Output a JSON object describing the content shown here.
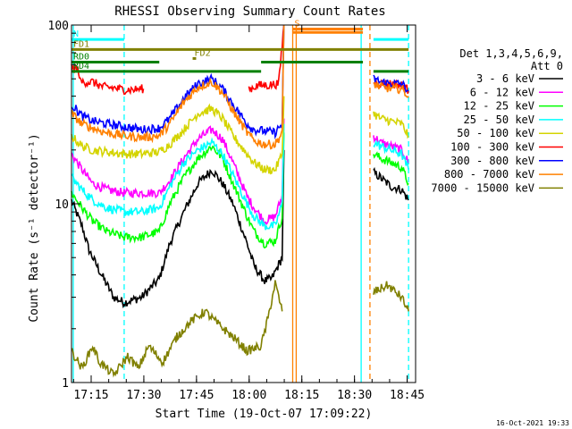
{
  "chart_data": {
    "type": "line",
    "title": "RHESSI Observing Summary Count Rates",
    "xlabel": "Start Time (19-Oct-07 17:09:22)",
    "ylabel": "Count Rate (s⁻¹ detector⁻¹)",
    "yscale": "log",
    "ylim": [
      1,
      100
    ],
    "xlim_minutes": [
      0,
      98
    ],
    "x_ticks": [
      {
        "label": "17:15",
        "min": 5.6
      },
      {
        "label": "17:30",
        "min": 20.6
      },
      {
        "label": "17:45",
        "min": 35.6
      },
      {
        "label": "18:00",
        "min": 50.6
      },
      {
        "label": "18:15",
        "min": 65.6
      },
      {
        "label": "18:30",
        "min": 80.6
      },
      {
        "label": "18:45",
        "min": 95.6
      }
    ],
    "y_ticks": [
      {
        "label": "1",
        "v": 1
      },
      {
        "label": "10",
        "v": 10
      },
      {
        "label": "100",
        "v": 100
      }
    ],
    "footer_date": "16-Oct-2021 19:33",
    "legend": {
      "header_line1": "Det 1,3,4,5,6,9,",
      "header_line2": "Att 0",
      "placement": "right"
    },
    "x_unit": "minutes since start",
    "series": [
      {
        "name": "3 - 6 keV",
        "color": "#000000",
        "x": [
          0,
          3,
          5,
          8,
          12,
          15,
          20,
          25,
          28,
          32,
          36,
          40,
          43,
          46,
          50,
          52,
          55,
          57,
          60,
          60.5,
          86,
          88,
          91,
          94,
          96
        ],
        "y": [
          10.4,
          7.5,
          5.5,
          4.2,
          3,
          2.8,
          3,
          3.8,
          6,
          9,
          13,
          15.5,
          13,
          10,
          6,
          4.5,
          3.7,
          3.8,
          5,
          20,
          15,
          14,
          12.5,
          12,
          10.5
        ]
      },
      {
        "name": "6 - 12 keV",
        "color": "#ff00ff",
        "x": [
          0,
          3,
          6,
          10,
          15,
          20,
          25,
          28,
          32,
          36,
          40,
          43,
          46,
          50,
          52,
          55,
          58,
          60,
          60.5,
          86,
          88,
          91,
          94,
          96
        ],
        "y": [
          19,
          15.5,
          13,
          12,
          11.5,
          11.5,
          11.5,
          13.5,
          18,
          23,
          26,
          23,
          17,
          11,
          9.5,
          8,
          8.5,
          11,
          30,
          24,
          22,
          21,
          20,
          17
        ]
      },
      {
        "name": "12 - 25 keV",
        "color": "#00ff00",
        "x": [
          0,
          3,
          6,
          10,
          15,
          20,
          25,
          28,
          32,
          36,
          40,
          43,
          46,
          50,
          52,
          55,
          58,
          60,
          60.5,
          86,
          88,
          91,
          94,
          96
        ],
        "y": [
          11.5,
          9.5,
          8,
          7,
          6.5,
          6.5,
          7,
          10,
          14,
          18,
          21,
          18,
          13,
          8.5,
          7,
          6,
          6.2,
          8.5,
          25,
          19,
          18,
          17,
          16,
          13
        ]
      },
      {
        "name": "25 - 50 keV",
        "color": "#00ffff",
        "x": [
          0,
          3,
          6,
          10,
          15,
          20,
          25,
          28,
          32,
          36,
          40,
          43,
          46,
          50,
          52,
          55,
          58,
          60,
          60.5,
          86,
          88,
          91,
          94,
          96
        ],
        "y": [
          14,
          12,
          10.5,
          9.5,
          9,
          9,
          9.5,
          12.5,
          17,
          20,
          22,
          19,
          14.5,
          10,
          8.5,
          7.5,
          7.5,
          10,
          28,
          22,
          21,
          20,
          19,
          15.5
        ]
      },
      {
        "name": "50 - 100 keV",
        "color": "#d4d400",
        "x": [
          0,
          3,
          6,
          10,
          15,
          20,
          25,
          28,
          32,
          36,
          40,
          43,
          46,
          50,
          52,
          55,
          58,
          60,
          60.5,
          86,
          88,
          91,
          94,
          96
        ],
        "y": [
          24,
          21,
          20,
          19.5,
          19,
          19,
          19.5,
          21.5,
          26,
          32,
          34,
          30,
          24,
          19,
          17,
          15.5,
          15.5,
          19,
          40,
          32,
          30,
          29,
          28,
          24
        ]
      },
      {
        "name": "100 - 300 keV",
        "color": "#ff0000",
        "x": [
          0,
          1,
          2,
          2.5,
          6,
          9,
          12,
          15,
          18,
          20,
          20.5,
          50.5,
          51,
          53,
          56,
          59,
          60.5,
          86,
          88,
          91,
          94,
          96
        ],
        "y": [
          57,
          57,
          56,
          48,
          48,
          45,
          44.5,
          43.5,
          43.5,
          44,
          44,
          44,
          44,
          46,
          46,
          47,
          100,
          48,
          47,
          47,
          46,
          43
        ]
      },
      {
        "name": "300 - 800 keV",
        "color": "#0000ff",
        "x": [
          0,
          3,
          6,
          10,
          15,
          20,
          25,
          28,
          32,
          36,
          40,
          43,
          46,
          50,
          52,
          55,
          58,
          60,
          60.5,
          86,
          88,
          91,
          94,
          96
        ],
        "y": [
          36,
          31,
          29,
          28,
          27,
          26,
          26.5,
          30,
          39,
          47,
          50,
          44,
          36,
          28,
          26,
          25.5,
          25,
          28,
          100,
          50,
          48,
          47,
          47,
          43
        ]
      },
      {
        "name": "800 - 7000 keV",
        "color": "#ff8000",
        "x": [
          0,
          3,
          6,
          10,
          15,
          20,
          25,
          28,
          32,
          36,
          40,
          43,
          46,
          50,
          52,
          55,
          58,
          60,
          60.5,
          86,
          88,
          91,
          94,
          96
        ],
        "y": [
          32,
          28,
          26.5,
          25,
          24,
          23.5,
          24,
          28,
          37,
          45,
          48,
          42,
          33,
          25,
          22.5,
          21.5,
          21.5,
          25,
          100,
          47,
          45,
          44,
          44,
          40
        ]
      },
      {
        "name": "7000 - 15000 keV",
        "color": "#808000",
        "x": [
          0,
          3,
          6,
          8,
          12,
          16,
          19,
          22,
          26,
          30,
          34,
          38,
          42,
          46,
          50,
          54,
          56,
          58,
          60,
          86,
          90,
          94,
          96
        ],
        "y": [
          1.5,
          1.2,
          1.6,
          1.3,
          1.1,
          1.4,
          1.2,
          1.6,
          1.3,
          1.8,
          2.2,
          2.5,
          2.1,
          1.8,
          1.5,
          1.6,
          2.3,
          3.6,
          2.5,
          3.2,
          3.5,
          3,
          2.5
        ]
      }
    ],
    "annotations": [
      {
        "label": "N",
        "color": "#00ffff",
        "x0": 0,
        "x1": 15,
        "v": 83
      },
      {
        "label": "",
        "color": "#00ffff",
        "x0": 86,
        "x1": 96,
        "v": 83
      },
      {
        "label": "FD1",
        "color": "#808000",
        "x0": 0,
        "x1": 96,
        "v": 73
      },
      {
        "label": "FD2",
        "color": "#808000",
        "x0": 34.5,
        "x1": 35.5,
        "v": 65
      },
      {
        "label": "RD0",
        "color": "#008000",
        "x0": 0,
        "x1": 25,
        "v": 62
      },
      {
        "label": "",
        "color": "#008000",
        "x0": 54,
        "x1": 83,
        "v": 62
      },
      {
        "label": "RD4",
        "color": "#008000",
        "x0": 0,
        "x1": 54,
        "v": 55
      },
      {
        "label": "",
        "color": "#008000",
        "x0": 86,
        "x1": 96,
        "v": 55
      },
      {
        "label": "S",
        "color": "#ff8000",
        "x0": 63,
        "x1": 83,
        "v": 95
      },
      {
        "label": "",
        "color": "#ff8000",
        "x0": 63,
        "x1": 83,
        "v": 91
      }
    ],
    "vertical_markers": [
      {
        "color": "#00ffff",
        "style": "solid",
        "x": 0.5
      },
      {
        "color": "#00ffff",
        "style": "dashed",
        "x": 15
      },
      {
        "color": "#ff8000",
        "style": "solid",
        "x": 63
      },
      {
        "color": "#ff8000",
        "style": "solid",
        "x": 64
      },
      {
        "color": "#00ffff",
        "style": "solid",
        "x": 82.5
      },
      {
        "color": "#ff8000",
        "style": "dashed",
        "x": 85
      },
      {
        "color": "#00ffff",
        "style": "dashed",
        "x": 96
      }
    ]
  }
}
